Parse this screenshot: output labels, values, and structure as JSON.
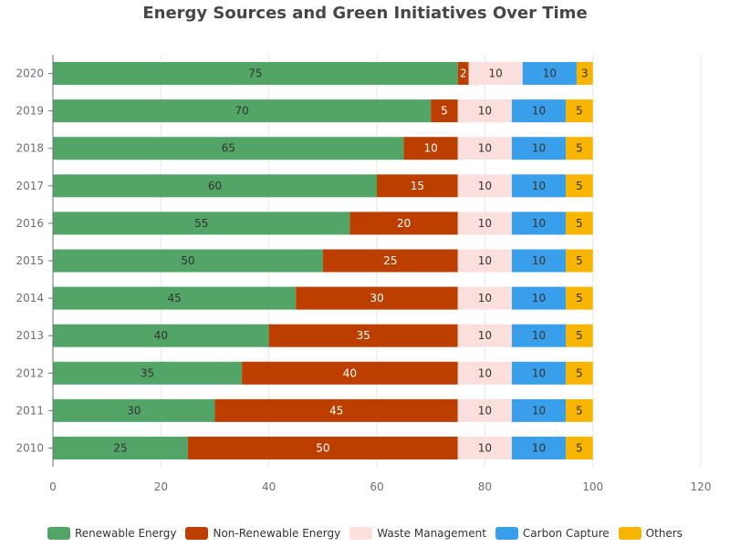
{
  "chart_data": {
    "type": "bar",
    "orientation": "horizontal",
    "stacked": true,
    "title": "Energy Sources and Green Initiatives Over Time",
    "categories": [
      "2010",
      "2011",
      "2012",
      "2013",
      "2014",
      "2015",
      "2016",
      "2017",
      "2018",
      "2019",
      "2020"
    ],
    "series": [
      {
        "name": "Renewable Energy",
        "color": "#53a567",
        "label_color": "#333333",
        "values": [
          25,
          30,
          35,
          40,
          45,
          50,
          55,
          60,
          65,
          70,
          75
        ]
      },
      {
        "name": "Non-Renewable Energy",
        "color": "#bd3f00",
        "label_color": "#ffffff",
        "values": [
          50,
          45,
          40,
          35,
          30,
          25,
          20,
          15,
          10,
          5,
          2
        ]
      },
      {
        "name": "Waste Management",
        "color": "#fadfdd",
        "label_color": "#333333",
        "values": [
          10,
          10,
          10,
          10,
          10,
          10,
          10,
          10,
          10,
          10,
          10
        ]
      },
      {
        "name": "Carbon Capture",
        "color": "#3a9fea",
        "label_color": "#333333",
        "values": [
          10,
          10,
          10,
          10,
          10,
          10,
          10,
          10,
          10,
          10,
          10
        ]
      },
      {
        "name": "Others",
        "color": "#f7b500",
        "label_color": "#333333",
        "values": [
          5,
          5,
          5,
          5,
          5,
          5,
          5,
          5,
          5,
          5,
          3
        ]
      }
    ],
    "xlim": [
      0,
      120
    ],
    "x_ticks": [
      0,
      20,
      40,
      60,
      80,
      100,
      120
    ],
    "grid": true,
    "legend_position": "bottom"
  }
}
